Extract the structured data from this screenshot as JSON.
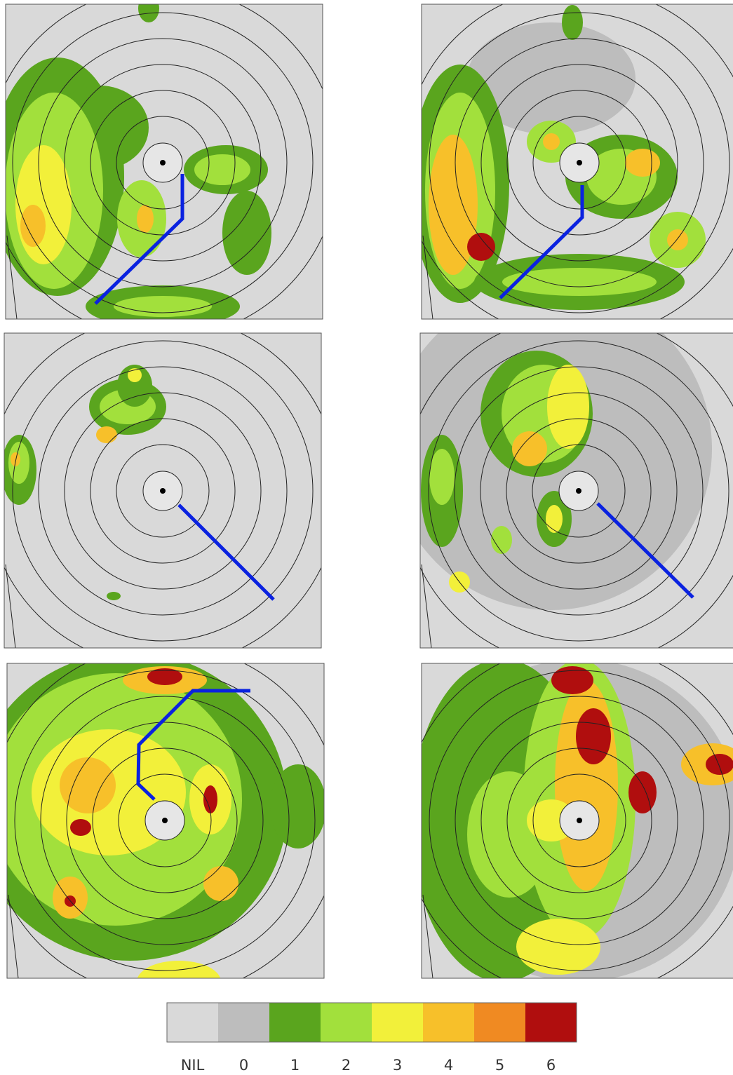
{
  "colorbar": {
    "bins": [
      {
        "label": "NIL",
        "color": "#d9d9d9"
      },
      {
        "label": "0",
        "color": "#bdbdbd"
      },
      {
        "label": "1",
        "color": "#5aa51e"
      },
      {
        "label": "2",
        "color": "#a2e03c"
      },
      {
        "label": "3",
        "color": "#f2f03a"
      },
      {
        "label": "4",
        "color": "#f7c02a"
      },
      {
        "label": "5",
        "color": "#f08a22"
      },
      {
        "label": "6",
        "color": "#b00e0e"
      }
    ]
  }
}
